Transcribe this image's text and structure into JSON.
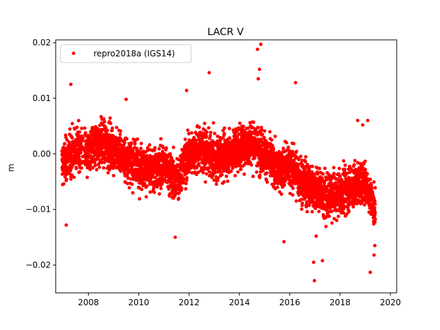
{
  "chart_data": {
    "type": "scatter",
    "title": "LACR V",
    "xlabel": "",
    "ylabel": "m",
    "xlim": [
      2006.7,
      2020.25
    ],
    "ylim": [
      -0.025,
      0.0205
    ],
    "xticks": [
      2008,
      2010,
      2012,
      2014,
      2016,
      2018,
      2020
    ],
    "xtick_labels": [
      "2008",
      "2010",
      "2012",
      "2014",
      "2016",
      "2018",
      "2020"
    ],
    "yticks": [
      -0.02,
      -0.01,
      0.0,
      0.01,
      0.02
    ],
    "ytick_labels": [
      "−0.02",
      "−0.01",
      "0.00",
      "0.01",
      "0.02"
    ],
    "grid": false,
    "legend_position": "top-left",
    "series": [
      {
        "name": "repro2018a (IGS14)",
        "color": "#ff0000",
        "marker": "circle",
        "trend": {
          "x": [
            2006.95,
            2007.5,
            2008.0,
            2008.5,
            2009.0,
            2009.5,
            2010.0,
            2010.5,
            2011.0,
            2011.5,
            2012.0,
            2012.5,
            2013.0,
            2013.5,
            2014.0,
            2014.5,
            2015.0,
            2015.5,
            2016.0,
            2016.5,
            2017.0,
            2017.5,
            2018.0,
            2018.5,
            2019.0,
            2019.4
          ],
          "y": [
            -0.002,
            0.001,
            0.0,
            0.002,
            0.001,
            -0.001,
            -0.002,
            -0.003,
            -0.002,
            -0.005,
            0.0,
            0.001,
            -0.001,
            0.0,
            0.001,
            0.002,
            0.0,
            -0.003,
            -0.002,
            -0.005,
            -0.006,
            -0.008,
            -0.007,
            -0.006,
            -0.005,
            -0.01
          ],
          "spread": 0.0032,
          "interval_years": 0.00274
        },
        "outliers": [
          [
            2014.85,
            0.0197
          ],
          [
            2014.72,
            0.0188
          ],
          [
            2014.8,
            0.0152
          ],
          [
            2014.75,
            0.0135
          ],
          [
            2012.8,
            0.0146
          ],
          [
            2007.3,
            0.0125
          ],
          [
            2016.23,
            0.0128
          ],
          [
            2011.9,
            0.0114
          ],
          [
            2009.5,
            0.0098
          ],
          [
            2016.98,
            -0.0228
          ],
          [
            2016.95,
            -0.0195
          ],
          [
            2017.3,
            -0.0192
          ],
          [
            2019.2,
            -0.0213
          ],
          [
            2019.35,
            -0.0182
          ],
          [
            2017.05,
            -0.0148
          ],
          [
            2015.77,
            -0.0158
          ],
          [
            2011.45,
            -0.015
          ],
          [
            2018.7,
            0.006
          ],
          [
            2019.1,
            0.006
          ],
          [
            2018.9,
            0.0052
          ],
          [
            2007.12,
            -0.0128
          ],
          [
            2019.38,
            -0.0165
          ]
        ]
      }
    ]
  }
}
